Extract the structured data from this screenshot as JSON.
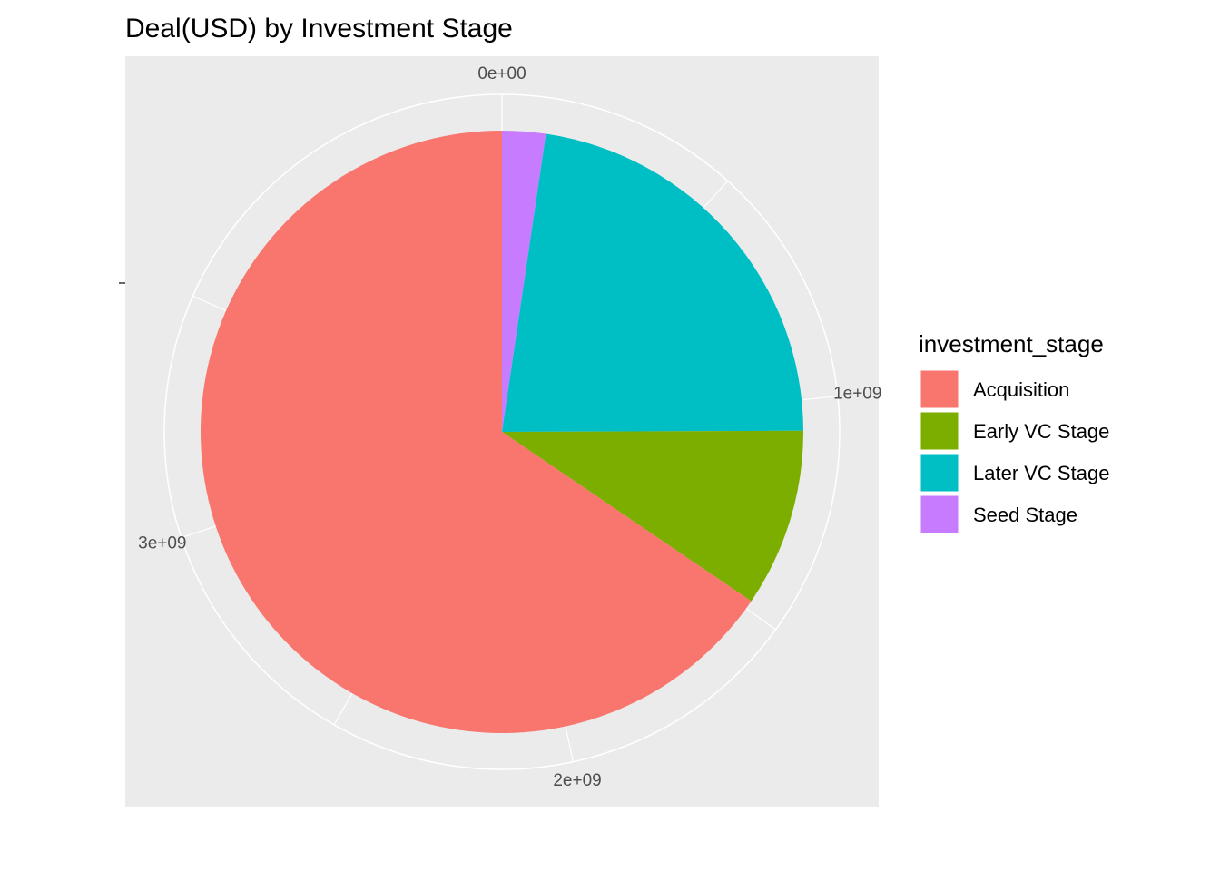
{
  "chart_data": {
    "type": "pie",
    "title": "Deal(USD) by Investment Stage",
    "categories": [
      "Acquisition",
      "Early VC Stage",
      "Later VC Stage",
      "Seed Stage"
    ],
    "values": [
      2810000000,
      410000000,
      970000000,
      100000000
    ],
    "stack_order": [
      "Seed Stage",
      "Later VC Stage",
      "Early VC Stage",
      "Acquisition"
    ],
    "colors": {
      "Acquisition": "#F8766D",
      "Early VC Stage": "#7CAE00",
      "Later VC Stage": "#00BFC4",
      "Seed Stage": "#C77CFF"
    },
    "theta_axis": {
      "ticks": [
        0,
        1000000000,
        2000000000,
        3000000000
      ],
      "tick_labels": [
        "0e+00",
        "1e+09",
        "2e+09",
        "3e+09"
      ],
      "minor_ticks": [
        500000000,
        1500000000,
        2500000000,
        3500000000
      ]
    },
    "legend": {
      "title": "investment_stage",
      "position": "right",
      "items": [
        "Acquisition",
        "Early VC Stage",
        "Later VC Stage",
        "Seed Stage"
      ]
    },
    "panel_background": "#EBEBEB",
    "grid_color": "#FFFFFF",
    "grid": true
  }
}
